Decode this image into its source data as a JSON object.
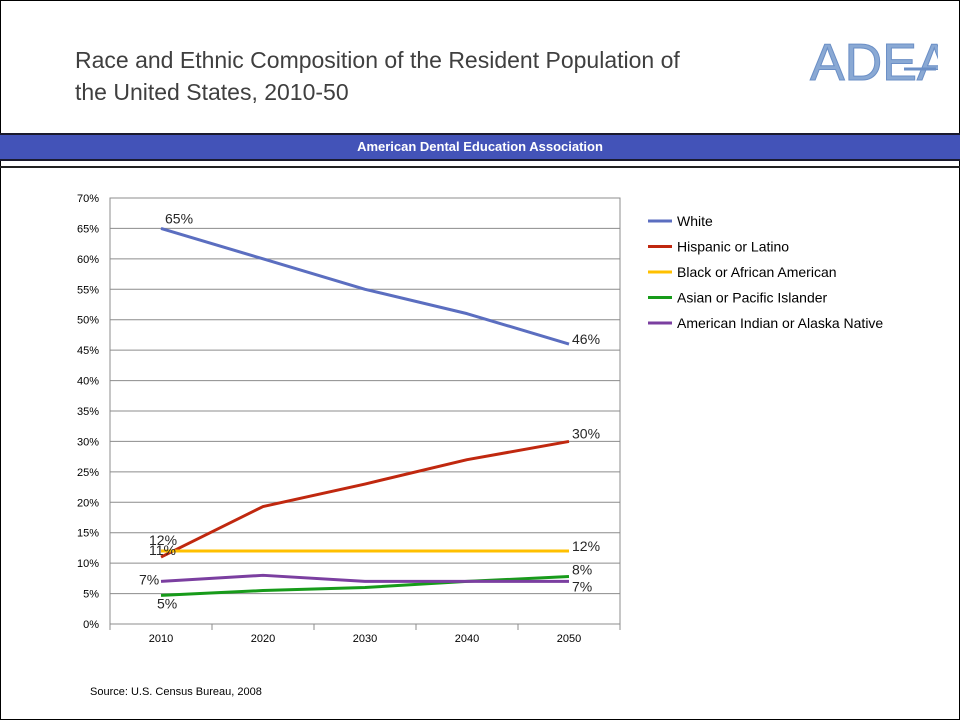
{
  "header": {
    "title_line1": "Race and Ethnic Composition of the Resident Population of",
    "title_line2": "the United States, 2010-50",
    "logo_text": "ADEA",
    "band_text": "American Dental Education Association"
  },
  "footer": {
    "source": "Source: U.S. Census Bureau, 2008"
  },
  "chart_data": {
    "type": "line",
    "categories": [
      "2010",
      "2020",
      "2030",
      "2040",
      "2050"
    ],
    "ylim": [
      0,
      70
    ],
    "yticks": [
      0,
      5,
      10,
      15,
      20,
      25,
      30,
      35,
      40,
      45,
      50,
      55,
      60,
      65,
      70
    ],
    "ytick_labels": [
      "0%",
      "5%",
      "10%",
      "15%",
      "20%",
      "25%",
      "30%",
      "35%",
      "40%",
      "45%",
      "50%",
      "55%",
      "60%",
      "65%",
      "70%"
    ],
    "grid": true,
    "legend_position": "right",
    "series": [
      {
        "name": "White",
        "color": "#5b6ec0",
        "values": [
          65,
          60,
          55,
          51,
          46
        ],
        "start_label": "65%",
        "end_label": "46%"
      },
      {
        "name": "Hispanic or Latino",
        "color": "#c0280f",
        "values": [
          11,
          19.3,
          23,
          27,
          30
        ],
        "start_label": "11%",
        "end_label": "30%"
      },
      {
        "name": "Black or African American",
        "color": "#ffc000",
        "values": [
          12,
          12,
          12,
          12,
          12
        ],
        "start_label": "12%",
        "end_label": "12%"
      },
      {
        "name": "Asian or Pacific Islander",
        "color": "#179b1a",
        "values": [
          4.7,
          5.5,
          6,
          7,
          7.8
        ],
        "start_label": "5%",
        "end_label": "8%"
      },
      {
        "name": "American Indian or Alaska Native",
        "color": "#7b3fa0",
        "values": [
          7,
          8,
          7,
          7,
          7
        ],
        "start_label": "7%",
        "end_label": "7%"
      }
    ]
  }
}
